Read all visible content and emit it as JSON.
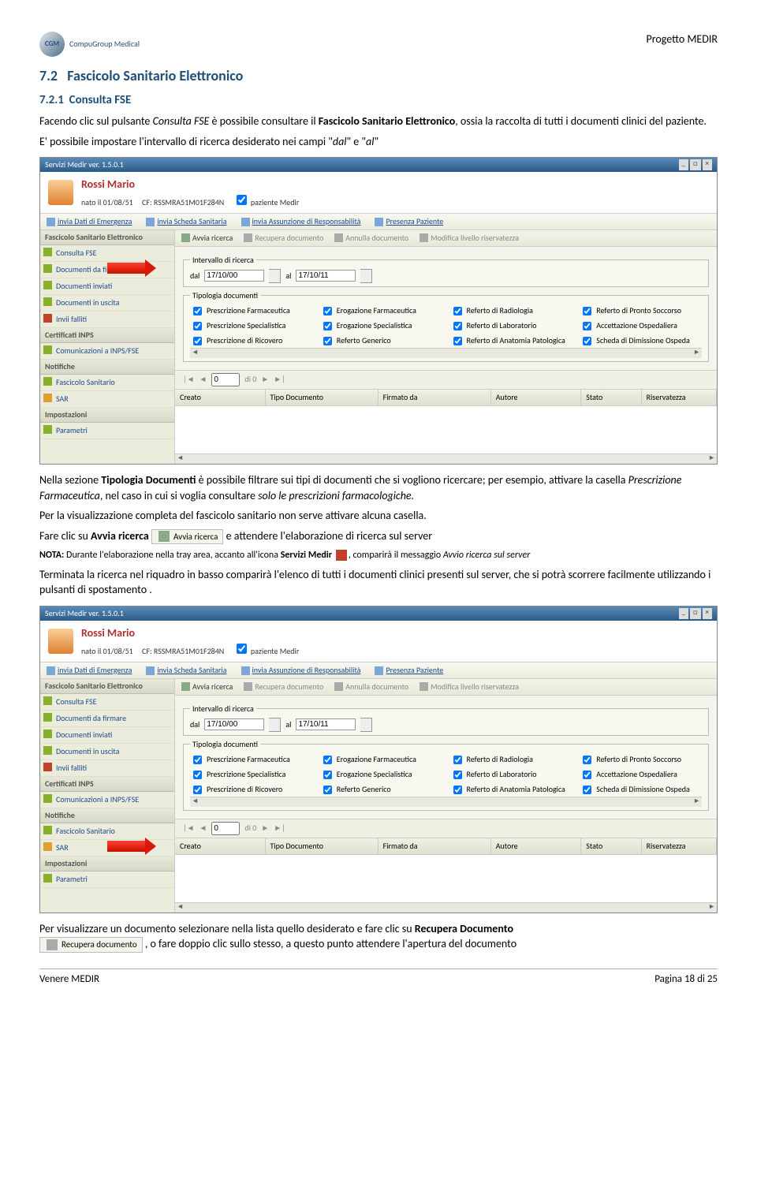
{
  "header": {
    "logo_abbrev": "CGM",
    "logo_name": "CompuGroup Medical",
    "project": "Progetto MEDIR"
  },
  "section": {
    "num": "7.2",
    "title": "Fascicolo Sanitario Elettronico",
    "sub_num": "7.2.1",
    "sub_title": "Consulta FSE"
  },
  "para1_a": "Facendo clic sul pulsante ",
  "para1_b": "Consulta FSE",
  "para1_c": " è possibile consultare il ",
  "para1_d": "Fascicolo Sanitario Elettronico",
  "para1_e": ", ossia la raccolta di tutti i documenti clinici del paziente.",
  "para2_a": "E' possibile impostare l'intervallo di ricerca desiderato nei campi \"",
  "para2_b": "dal",
  "para2_c": "\" e \"",
  "para2_d": "al",
  "para2_e": "\"",
  "screenshot": {
    "title": "Servizi Medir ver. 1.5.0.1",
    "patient_name": "Rossi Mario",
    "patient_dob": "nato il 01/08/51",
    "patient_cf_label": "CF:",
    "patient_cf": "RSSMRA51M01F284N",
    "patient_chk": "paziente Medir",
    "links": [
      "invia Dati di Emergenza",
      "invia Scheda Sanitaria",
      "invia Assunzione di Responsabilità",
      "Presenza Paziente"
    ],
    "nav_groups": [
      {
        "title": "Fascicolo Sanitario Elettronico",
        "items": [
          "Consulta FSE",
          "Documenti da firmare",
          "Documenti inviati",
          "Documenti in uscita",
          "Invii falliti"
        ]
      },
      {
        "title": "Certificati INPS",
        "items": [
          "Comunicazioni a INPS/FSE"
        ]
      },
      {
        "title": "Notifiche",
        "items": [
          "Fascicolo Sanitario",
          "SAR"
        ]
      },
      {
        "title": "Impostazioni",
        "items": [
          "Parametri"
        ]
      }
    ],
    "toolbar": [
      "Avvia ricerca",
      "Recupera documento",
      "Annulla documento",
      "Modifica livello riservatezza"
    ],
    "intervallo_legend": "Intervallo di ricerca",
    "dal_label": "dal",
    "dal_value": "17/10/00",
    "al_label": "al",
    "al_value": "17/10/11",
    "tipologia_legend": "Tipologia documenti",
    "doc_types": [
      "Prescrizione Farmaceutica",
      "Erogazione Farmaceutica",
      "Referto di Radiologia",
      "Referto di Pronto Soccorso",
      "Prescrizione Specialistica",
      "Erogazione Specialistica",
      "Referto di Laboratorio",
      "Accettazione Ospedaliera",
      "Prescrizione di Ricovero",
      "Referto Generico",
      "Referto di Anatomia Patologica",
      "Scheda di Dimissione Ospeda"
    ],
    "pager_di": "di 0",
    "pager_val": "0",
    "columns": [
      "Creato",
      "Tipo Documento",
      "Firmato da",
      "Autore",
      "Stato",
      "Riservatezza"
    ]
  },
  "para3_a": "Nella sezione ",
  "para3_b": "Tipologia Documenti",
  "para3_c": " è possibile filtrare sui tipi di documenti che si vogliono ricercare; per esempio, attivare la casella ",
  "para3_d": "Prescrizione Farmaceutica",
  "para3_e": ", nel caso in cui si voglia consultare ",
  "para3_f": "solo le prescrizioni farmacologiche.",
  "para4": "Per la visualizzazione completa del fascicolo sanitario non serve attivare alcuna casella.",
  "para5_a": "Fare clic su ",
  "para5_b": "Avvia ricerca",
  "para5_btn": "Avvia ricerca",
  "para5_c": " e attendere l'elaborazione di ricerca sul server",
  "nota_a": "NOTA:",
  "nota_b": " Durante l'elaborazione nella tray area, accanto all'icona ",
  "nota_c": "Servizi Medir",
  "nota_d": ", comparirà il messaggio ",
  "nota_e": "Avvio ricerca sul server",
  "para6": "Terminata la ricerca nel riquadro in basso comparirà l'elenco di tutti i documenti clinici presenti sul server, che si potrà scorrere facilmente utilizzando i pulsanti di spostamento .",
  "para7_a": "Per visualizzare un documento selezionare nella lista quello desiderato e fare clic su ",
  "para7_b": "Recupera Documento",
  "para7_btn": "Recupera documento",
  "para7_c": ", o fare doppio clic sullo stesso, a questo punto attendere l'apertura del documento",
  "footer_left": "Venere MEDIR",
  "footer_right": "Pagina 18 di 25"
}
